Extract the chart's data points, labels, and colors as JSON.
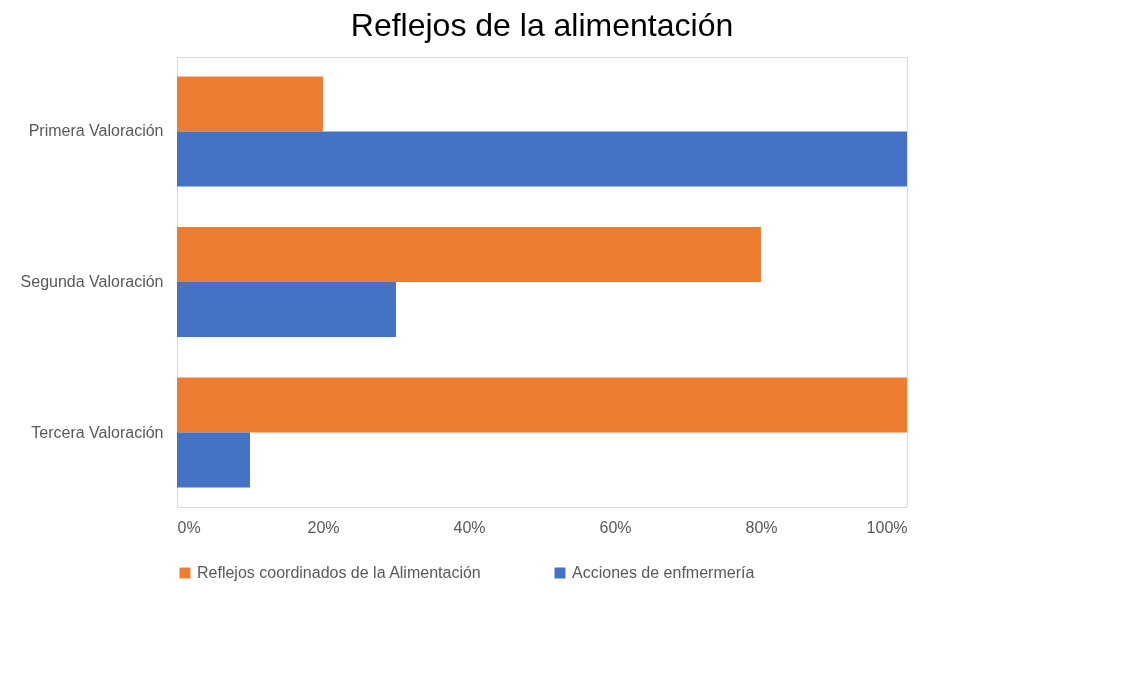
{
  "chart_data": {
    "type": "bar",
    "orientation": "horizontal",
    "title": "Reflejos de la alimentación",
    "categories": [
      "Primera Valoración",
      "Segunda Valoración",
      "Tercera Valoración"
    ],
    "series": [
      {
        "name": "Reflejos coordinados de la Alimentación",
        "color": "#ed7d31",
        "values": [
          20,
          80,
          100
        ]
      },
      {
        "name": "Acciones de enfmermería",
        "color": "#4472c4",
        "values": [
          100,
          30,
          10
        ]
      }
    ],
    "xlim": [
      0,
      100
    ],
    "xticks": [
      {
        "value": 0,
        "label": "0%"
      },
      {
        "value": 20,
        "label": "20%"
      },
      {
        "value": 40,
        "label": "40%"
      },
      {
        "value": 60,
        "label": "60%"
      },
      {
        "value": 80,
        "label": "80%"
      },
      {
        "value": 100,
        "label": "100%"
      }
    ],
    "grid": false,
    "legend": "bottom"
  }
}
